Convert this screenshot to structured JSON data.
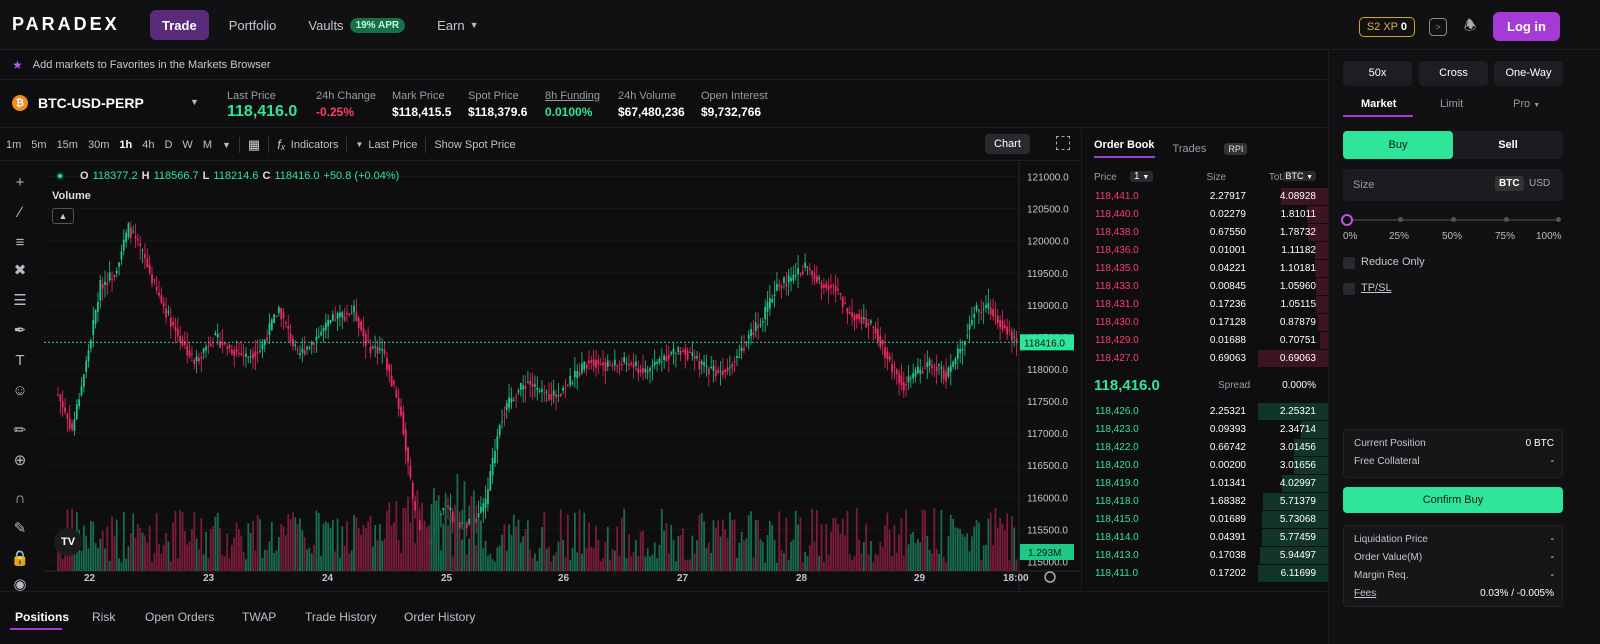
{
  "app": {
    "logo": "PARADEX",
    "nav": [
      {
        "label": "Trade",
        "active": true
      },
      {
        "label": "Portfolio"
      },
      {
        "label": "Vaults",
        "badge": "19% APR"
      },
      {
        "label": "Earn",
        "has_dropdown": true
      }
    ],
    "xp_label": "S2 XP",
    "xp_value": "0",
    "login_label": "Log in"
  },
  "favorites_bar": {
    "text": "Add markets to Favorites in the Markets Browser",
    "icon": "star-icon"
  },
  "market": {
    "symbol": "BTC-USD-PERP",
    "icon_letter": "₿",
    "stats": [
      {
        "label": "Last Price",
        "value": "118,416.0"
      },
      {
        "label": "24h Change",
        "value": "-0.25%"
      },
      {
        "label": "Mark Price",
        "value": "$118,415.5"
      },
      {
        "label": "Spot Price",
        "value": "$118,379.6"
      },
      {
        "label": "8h Funding",
        "value": "0.0100%"
      },
      {
        "label": "24h Volume",
        "value": "$67,480,236"
      },
      {
        "label": "Open Interest",
        "value": "$9,732,766"
      }
    ]
  },
  "chart_toolbar": {
    "timeframes": [
      "1m",
      "5m",
      "15m",
      "30m",
      "1h",
      "4h",
      "D",
      "W",
      "M"
    ],
    "active_timeframe": "1h",
    "indicators_label": "Indicators",
    "last_price_label": "Last Price",
    "show_spot_label": "Show Spot Price",
    "chart_label": "Chart"
  },
  "legend": {
    "o": "118377.2",
    "h": "118566.7",
    "l": "118214.6",
    "c": "118416.0",
    "change": "+50.8 (+0.04%)",
    "volume_label": "Volume",
    "tv_logo": "TV"
  },
  "chart_data": {
    "type": "candlestick",
    "y_ticks": [
      "121000.0",
      "120500.0",
      "120000.0",
      "119500.0",
      "119000.0",
      "118500.0",
      "118000.0",
      "117500.0",
      "117000.0",
      "116500.0",
      "116000.0",
      "115500.0",
      "115000.0"
    ],
    "ylim": [
      114850,
      121150
    ],
    "x_labels": [
      "22",
      "23",
      "24",
      "25",
      "26",
      "27",
      "28",
      "29",
      "18:00"
    ],
    "last_price": 118416.0,
    "last_price_label": "118416.0",
    "volume_label": "1.293M",
    "close_anchors": [
      [
        0,
        117600
      ],
      [
        6,
        117050
      ],
      [
        12,
        118100
      ],
      [
        18,
        119300
      ],
      [
        24,
        119500
      ],
      [
        30,
        120200
      ],
      [
        36,
        119800
      ],
      [
        42,
        119200
      ],
      [
        50,
        118600
      ],
      [
        58,
        118100
      ],
      [
        66,
        118500
      ],
      [
        74,
        118300
      ],
      [
        80,
        118200
      ],
      [
        86,
        118300
      ],
      [
        94,
        118950
      ],
      [
        102,
        118200
      ],
      [
        110,
        118500
      ],
      [
        118,
        118800
      ],
      [
        126,
        118900
      ],
      [
        132,
        118350
      ],
      [
        138,
        118300
      ],
      [
        146,
        117300
      ],
      [
        152,
        115700
      ],
      [
        158,
        115300
      ],
      [
        164,
        115900
      ],
      [
        170,
        115600
      ],
      [
        176,
        115600
      ],
      [
        182,
        115900
      ],
      [
        188,
        117200
      ],
      [
        194,
        117600
      ],
      [
        200,
        117800
      ],
      [
        206,
        117600
      ],
      [
        212,
        117600
      ],
      [
        218,
        117800
      ],
      [
        226,
        118150
      ],
      [
        234,
        118050
      ],
      [
        242,
        118100
      ],
      [
        250,
        117950
      ],
      [
        258,
        118200
      ],
      [
        266,
        118300
      ],
      [
        274,
        118050
      ],
      [
        282,
        117950
      ],
      [
        288,
        118150
      ],
      [
        294,
        118500
      ],
      [
        300,
        118800
      ],
      [
        306,
        119300
      ],
      [
        312,
        119400
      ],
      [
        318,
        119600
      ],
      [
        324,
        119350
      ],
      [
        330,
        119300
      ],
      [
        336,
        118900
      ],
      [
        342,
        118800
      ],
      [
        348,
        118600
      ],
      [
        354,
        118100
      ],
      [
        360,
        117750
      ],
      [
        366,
        117950
      ],
      [
        372,
        118100
      ],
      [
        378,
        117900
      ],
      [
        384,
        118300
      ],
      [
        390,
        118900
      ],
      [
        396,
        118950
      ],
      [
        402,
        118700
      ],
      [
        408,
        118420
      ]
    ]
  },
  "orderbook": {
    "tabs": [
      "Order Book",
      "Trades"
    ],
    "rpi_label": "RPI",
    "price_label": "Price",
    "tick_size": "1",
    "size_label": "Size",
    "total_label": "Total",
    "total_unit": "BTC",
    "asks": [
      {
        "price": "118,441.0",
        "size": "2.27917",
        "total": "4.08928",
        "depth": 0.67
      },
      {
        "price": "118,440.0",
        "size": "0.02279",
        "total": "1.81011",
        "depth": 0.3
      },
      {
        "price": "118,438.0",
        "size": "0.67550",
        "total": "1.78732",
        "depth": 0.29
      },
      {
        "price": "118,436.0",
        "size": "0.01001",
        "total": "1.11182",
        "depth": 0.18
      },
      {
        "price": "118,435.0",
        "size": "0.04221",
        "total": "1.10181",
        "depth": 0.18
      },
      {
        "price": "118,433.0",
        "size": "0.00845",
        "total": "1.05960",
        "depth": 0.17
      },
      {
        "price": "118,431.0",
        "size": "0.17236",
        "total": "1.05115",
        "depth": 0.17
      },
      {
        "price": "118,430.0",
        "size": "0.17128",
        "total": "0.87879",
        "depth": 0.14
      },
      {
        "price": "118,429.0",
        "size": "0.01688",
        "total": "0.70751",
        "depth": 0.12
      },
      {
        "price": "118,427.0",
        "size": "0.69063",
        "total": "0.69063",
        "depth": 1.0
      }
    ],
    "mid_price": "118,416.0",
    "spread_label": "Spread",
    "spread_value": "0.000%",
    "bids": [
      {
        "price": "118,426.0",
        "size": "2.25321",
        "total": "2.25321",
        "depth": 1.0
      },
      {
        "price": "118,423.0",
        "size": "0.09393",
        "total": "2.34714",
        "depth": 0.38
      },
      {
        "price": "118,422.0",
        "size": "0.66742",
        "total": "3.01456",
        "depth": 0.49
      },
      {
        "price": "118,420.0",
        "size": "0.00200",
        "total": "3.01656",
        "depth": 0.49
      },
      {
        "price": "118,419.0",
        "size": "1.01341",
        "total": "4.02997",
        "depth": 0.66
      },
      {
        "price": "118,418.0",
        "size": "1.68382",
        "total": "5.71379",
        "depth": 0.93
      },
      {
        "price": "118,415.0",
        "size": "0.01689",
        "total": "5.73068",
        "depth": 0.94
      },
      {
        "price": "118,414.0",
        "size": "0.04391",
        "total": "5.77459",
        "depth": 0.94
      },
      {
        "price": "118,413.0",
        "size": "0.17038",
        "total": "5.94497",
        "depth": 0.97
      },
      {
        "price": "118,411.0",
        "size": "0.17202",
        "total": "6.11699",
        "depth": 1.0
      }
    ]
  },
  "order_form": {
    "leverage": "50x",
    "margin_mode": "Cross",
    "position_mode": "One-Way",
    "tabs": [
      "Market",
      "Limit",
      "Pro"
    ],
    "buy_label": "Buy",
    "sell_label": "Sell",
    "size_label": "Size",
    "units": [
      "BTC",
      "USD"
    ],
    "percentages": [
      "0%",
      "25%",
      "50%",
      "75%",
      "100%"
    ],
    "slider_value": 0,
    "reduce_only_label": "Reduce Only",
    "tpsl_label": "TP/SL",
    "current_position_label": "Current Position",
    "current_position_value": "0 BTC",
    "free_collateral_label": "Free Collateral",
    "free_collateral_value": "-",
    "confirm_label": "Confirm Buy",
    "liquidation_label": "Liquidation Price",
    "liquidation_value": "-",
    "order_value_label": "Order Value(M)",
    "order_value_value": "-",
    "margin_req_label": "Margin Req.",
    "margin_req_value": "-",
    "fees_label": "Fees",
    "fees_value": "0.03% / -0.005%"
  },
  "bottom_tabs": [
    "Positions",
    "Risk",
    "Open Orders",
    "TWAP",
    "Trade History",
    "Order History"
  ],
  "colors": {
    "accent": "#a53bd6",
    "up": "#2fe59a",
    "down": "#ff3b6b",
    "up_candle": "#1fc887",
    "down_candle": "#f0295f"
  }
}
